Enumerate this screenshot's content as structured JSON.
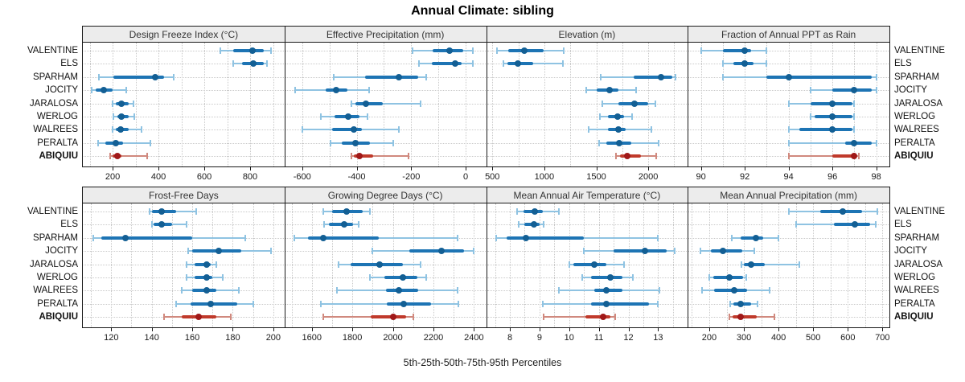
{
  "chart_data": {
    "type": "interval-dotplot-grid",
    "title": "Annual Climate: sibling",
    "caption": "5th-25th-50th-75th-95th Percentiles",
    "percentiles_shown": [
      5,
      25,
      50,
      75,
      95
    ],
    "stations": [
      "VALENTINE",
      "ELS",
      "SPARHAM",
      "JOCITY",
      "JARALOSA",
      "WERLOG",
      "WALREES",
      "PERALTA",
      "ABIQUIU"
    ],
    "highlight_station": "ABIQUIU",
    "legend_position": "none",
    "grid": "dotted",
    "colors": {
      "normal_light": "#8fc3e2",
      "normal_mid": "#1d74b4",
      "normal_dot": "#135f94",
      "highlight_light": "#d0897e",
      "highlight_mid": "#c03a2b",
      "highlight_dot": "#a01818",
      "gridline": "#c9c9c9",
      "frame": "#1a1a1a",
      "header_bg": "#ececec"
    },
    "panels": [
      {
        "title": "Design Freeze Index (°C)",
        "row": 0,
        "col": 0,
        "xlim": [
          70,
          950
        ],
        "ticks": [
          200,
          400,
          600,
          800
        ],
        "grid_step": 100,
        "series": [
          {
            "station": "VALENTINE",
            "p": [
              670,
              725,
              810,
              860,
              890
            ]
          },
          {
            "station": "ELS",
            "p": [
              725,
              765,
              815,
              860,
              875
            ]
          },
          {
            "station": "SPARHAM",
            "p": [
              140,
              205,
              385,
              425,
              465
            ]
          },
          {
            "station": "JOCITY",
            "p": [
              110,
              125,
              160,
              200,
              260
            ]
          },
          {
            "station": "JARALOSA",
            "p": [
              200,
              215,
              240,
              270,
              290
            ]
          },
          {
            "station": "WERLOG",
            "p": [
              205,
              220,
              240,
              270,
              295
            ]
          },
          {
            "station": "WALREES",
            "p": [
              200,
              215,
              235,
              270,
              325
            ]
          },
          {
            "station": "PERALTA",
            "p": [
              135,
              170,
              215,
              245,
              365
            ]
          },
          {
            "station": "ABIQUIU",
            "p": [
              190,
              200,
              220,
              240,
              350
            ]
          }
        ]
      },
      {
        "title": "Effective Precipitation (mm)",
        "row": 0,
        "col": 1,
        "xlim": [
          -665,
          75
        ],
        "ticks": [
          -600,
          -400,
          -200,
          0
        ],
        "grid_step": 100,
        "series": [
          {
            "station": "VALENTINE",
            "p": [
              -195,
              -120,
              -60,
              -10,
              25
            ]
          },
          {
            "station": "ELS",
            "p": [
              -170,
              -125,
              -40,
              -15,
              25
            ]
          },
          {
            "station": "SPARHAM",
            "p": [
              -485,
              -370,
              -245,
              -175,
              -145
            ]
          },
          {
            "station": "JOCITY",
            "p": [
              -625,
              -515,
              -475,
              -435,
              -355
            ]
          },
          {
            "station": "JARALOSA",
            "p": [
              -420,
              -405,
              -365,
              -305,
              -165
            ]
          },
          {
            "station": "WERLOG",
            "p": [
              -530,
              -480,
              -430,
              -390,
              -360
            ]
          },
          {
            "station": "WALREES",
            "p": [
              -600,
              -490,
              -410,
              -380,
              -245
            ]
          },
          {
            "station": "PERALTA",
            "p": [
              -495,
              -455,
              -405,
              -350,
              -265
            ]
          },
          {
            "station": "ABIQUIU",
            "p": [
              -420,
              -410,
              -390,
              -340,
              -210
            ]
          }
        ]
      },
      {
        "title": "Elevation (m)",
        "row": 0,
        "col": 2,
        "xlim": [
          440,
          2380
        ],
        "ticks": [
          500,
          1000,
          1500,
          2000
        ],
        "grid_step": 250,
        "series": [
          {
            "station": "VALENTINE",
            "p": [
              545,
              650,
              805,
              995,
              1190
            ]
          },
          {
            "station": "ELS",
            "p": [
              610,
              645,
              745,
              890,
              1175
            ]
          },
          {
            "station": "SPARHAM",
            "p": [
              1545,
              1860,
              2120,
              2230,
              2265
            ]
          },
          {
            "station": "JOCITY",
            "p": [
              1400,
              1505,
              1630,
              1710,
              1885
            ]
          },
          {
            "station": "JARALOSA",
            "p": [
              1560,
              1715,
              1870,
              2000,
              2065
            ]
          },
          {
            "station": "WERLOG",
            "p": [
              1535,
              1615,
              1705,
              1770,
              1845
            ]
          },
          {
            "station": "WALREES",
            "p": [
              1430,
              1610,
              1715,
              1785,
              2030
            ]
          },
          {
            "station": "PERALTA",
            "p": [
              1530,
              1595,
              1720,
              1835,
              2100
            ]
          },
          {
            "station": "ABIQUIU",
            "p": [
              1690,
              1725,
              1800,
              1930,
              2080
            ]
          }
        ]
      },
      {
        "title": "Fraction of Annual PPT as Rain",
        "row": 0,
        "col": 3,
        "xlim": [
          89.4,
          98.6
        ],
        "ticks": [
          90,
          92,
          94,
          96,
          98
        ],
        "grid_step": 1,
        "series": [
          {
            "station": "VALENTINE",
            "p": [
              90,
              91,
              92,
              92.3,
              93
            ]
          },
          {
            "station": "ELS",
            "p": [
              91,
              91.5,
              92,
              92.4,
              93
            ]
          },
          {
            "station": "SPARHAM",
            "p": [
              91,
              93,
              94,
              97.8,
              98
            ]
          },
          {
            "station": "JOCITY",
            "p": [
              95,
              96,
              97,
              97.8,
              98
            ]
          },
          {
            "station": "JARALOSA",
            "p": [
              94,
              95,
              96,
              96.9,
              97
            ]
          },
          {
            "station": "WERLOG",
            "p": [
              95,
              95.2,
              96,
              96.9,
              97
            ]
          },
          {
            "station": "WALREES",
            "p": [
              94,
              94.5,
              96,
              96.9,
              97
            ]
          },
          {
            "station": "PERALTA",
            "p": [
              94,
              96.6,
              97,
              97.8,
              98
            ]
          },
          {
            "station": "ABIQUIU",
            "p": [
              94,
              96,
              97,
              97.1,
              97.2
            ]
          }
        ]
      },
      {
        "title": "Frost-Free Days",
        "row": 1,
        "col": 0,
        "xlim": [
          106,
          205.5
        ],
        "ticks": [
          120,
          140,
          160,
          180,
          200
        ],
        "grid_step": 10,
        "series": [
          {
            "station": "VALENTINE",
            "p": [
              139,
              140,
              145,
              152,
              162
            ]
          },
          {
            "station": "ELS",
            "p": [
              140,
              141,
              145,
              150,
              157
            ]
          },
          {
            "station": "SPARHAM",
            "p": [
              111,
              115,
              127,
              160,
              186
            ]
          },
          {
            "station": "JOCITY",
            "p": [
              158,
              160,
              173,
              184,
              199
            ]
          },
          {
            "station": "JARALOSA",
            "p": [
              157,
              161,
              167,
              169,
              172
            ]
          },
          {
            "station": "WERLOG",
            "p": [
              157,
              161,
              167,
              170,
              175
            ]
          },
          {
            "station": "WALREES",
            "p": [
              155,
              160,
              167,
              172,
              183
            ]
          },
          {
            "station": "PERALTA",
            "p": [
              152,
              159,
              169,
              182,
              190
            ]
          },
          {
            "station": "ABIQUIU",
            "p": [
              146,
              155,
              163,
              172,
              179
            ]
          }
        ]
      },
      {
        "title": "Growing Degree Days (°C)",
        "row": 1,
        "col": 1,
        "xlim": [
          1465,
          2460
        ],
        "ticks": [
          1600,
          1800,
          2000,
          2200,
          2400
        ],
        "grid_step": 100,
        "series": [
          {
            "station": "VALENTINE",
            "p": [
              1655,
              1700,
              1770,
              1850,
              1885
            ]
          },
          {
            "station": "ELS",
            "p": [
              1660,
              1685,
              1760,
              1805,
              1830
            ]
          },
          {
            "station": "SPARHAM",
            "p": [
              1515,
              1580,
              1655,
              1930,
              2320
            ]
          },
          {
            "station": "JOCITY",
            "p": [
              1900,
              2080,
              2240,
              2350,
              2400
            ]
          },
          {
            "station": "JARALOSA",
            "p": [
              1730,
              1790,
              1935,
              2050,
              2135
            ]
          },
          {
            "station": "WERLOG",
            "p": [
              1885,
              1960,
              2050,
              2120,
              2165
            ]
          },
          {
            "station": "WALREES",
            "p": [
              1725,
              1965,
              2030,
              2125,
              2320
            ]
          },
          {
            "station": "PERALTA",
            "p": [
              1645,
              1970,
              2055,
              2190,
              2325
            ]
          },
          {
            "station": "ABIQUIU",
            "p": [
              1655,
              1890,
              2000,
              2065,
              2100
            ]
          }
        ]
      },
      {
        "title": "Mean Annual Air Temperature (°C)",
        "row": 1,
        "col": 2,
        "xlim": [
          7.2,
          14.0
        ],
        "ticks": [
          8,
          9,
          10,
          11,
          12,
          13
        ],
        "grid_step": 0.5,
        "series": [
          {
            "station": "VALENTINE",
            "p": [
              8.25,
              8.45,
              8.85,
              9.1,
              9.65
            ]
          },
          {
            "station": "ELS",
            "p": [
              8.3,
              8.5,
              8.8,
              9.0,
              9.15
            ]
          },
          {
            "station": "SPARHAM",
            "p": [
              7.55,
              7.9,
              8.55,
              10.5,
              13.0
            ]
          },
          {
            "station": "JOCITY",
            "p": [
              10.5,
              11.5,
              12.55,
              13.3,
              13.55
            ]
          },
          {
            "station": "JARALOSA",
            "p": [
              10.0,
              10.15,
              10.85,
              11.25,
              11.85
            ]
          },
          {
            "station": "WERLOG",
            "p": [
              10.45,
              10.75,
              11.4,
              11.8,
              12.15
            ]
          },
          {
            "station": "WALREES",
            "p": [
              9.65,
              10.85,
              11.25,
              11.8,
              13.05
            ]
          },
          {
            "station": "PERALTA",
            "p": [
              9.1,
              10.75,
              11.25,
              12.7,
              13.0
            ]
          },
          {
            "station": "ABIQUIU",
            "p": [
              9.15,
              10.55,
              11.15,
              11.4,
              11.55
            ]
          }
        ]
      },
      {
        "title": "Mean Annual Precipitation (mm)",
        "row": 1,
        "col": 3,
        "xlim": [
          138,
          720
        ],
        "ticks": [
          200,
          300,
          400,
          500,
          600,
          700
        ],
        "grid_step": 50,
        "series": [
          {
            "station": "VALENTINE",
            "p": [
              430,
              520,
              585,
              640,
              685
            ]
          },
          {
            "station": "ELS",
            "p": [
              450,
              560,
              620,
              665,
              680
            ]
          },
          {
            "station": "SPARHAM",
            "p": [
              265,
              290,
              335,
              355,
              400
            ]
          },
          {
            "station": "JOCITY",
            "p": [
              175,
              205,
              240,
              295,
              330
            ]
          },
          {
            "station": "JARALOSA",
            "p": [
              293,
              300,
              320,
              360,
              460
            ]
          },
          {
            "station": "WERLOG",
            "p": [
              200,
              212,
              257,
              297,
              307
            ]
          },
          {
            "station": "WALREES",
            "p": [
              180,
              215,
              272,
              310,
              375
            ]
          },
          {
            "station": "PERALTA",
            "p": [
              260,
              270,
              290,
              320,
              340
            ]
          },
          {
            "station": "ABIQUIU",
            "p": [
              258,
              268,
              290,
              338,
              388
            ]
          }
        ]
      }
    ]
  }
}
